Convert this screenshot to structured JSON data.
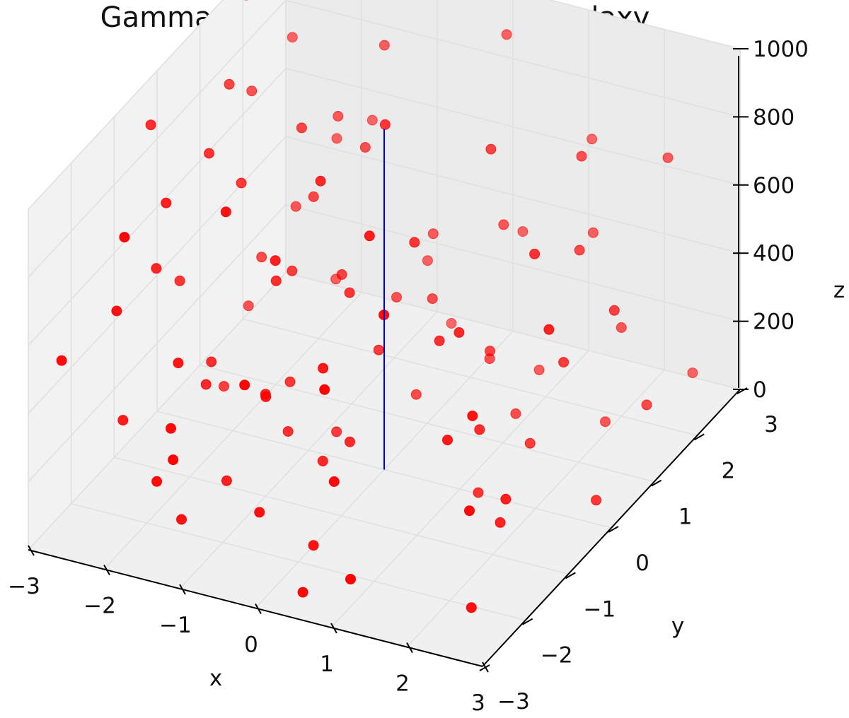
{
  "chart_data": {
    "type": "scatter",
    "title": "Gamma-rays passing through a galaxy",
    "xlabel": "x",
    "ylabel": "y",
    "zlabel": "z",
    "xlim": [
      -3,
      3
    ],
    "ylim": [
      -3,
      3
    ],
    "zlim": [
      0,
      1000
    ],
    "xticks": [
      "−3",
      "−2",
      "−1",
      "0",
      "1",
      "2",
      "3"
    ],
    "yticks": [
      "−3",
      "−2",
      "−1",
      "0",
      "1",
      "2",
      "3"
    ],
    "zticks": [
      "0",
      "200",
      "400",
      "600",
      "800",
      "1000"
    ],
    "grid": true,
    "series": [
      {
        "kind": "scatter3d",
        "color": "#ff0000",
        "points": [
          [
            -2.8,
            -0.5,
            920
          ],
          [
            -2.5,
            0.8,
            880
          ],
          [
            -2.2,
            -1.2,
            820
          ],
          [
            -2.6,
            1.5,
            760
          ],
          [
            -2.0,
            0.2,
            700
          ],
          [
            -1.8,
            2.1,
            650
          ],
          [
            -2.4,
            -2.0,
            600
          ],
          [
            -1.5,
            1.0,
            580
          ],
          [
            -1.2,
            -0.4,
            540
          ],
          [
            -2.1,
            2.6,
            500
          ],
          [
            -1.7,
            -1.8,
            460
          ],
          [
            -0.9,
            0.6,
            440
          ],
          [
            -2.7,
            0.0,
            400
          ],
          [
            -1.4,
            -2.5,
            380
          ],
          [
            -0.6,
            2.2,
            360
          ],
          [
            -2.3,
            1.2,
            330
          ],
          [
            -1.0,
            -1.0,
            300
          ],
          [
            -0.3,
            0.4,
            280
          ],
          [
            -1.9,
            -0.8,
            250
          ],
          [
            -0.8,
            1.7,
            230
          ],
          [
            -2.6,
            -1.5,
            200
          ],
          [
            -1.3,
            0.1,
            170
          ],
          [
            -0.4,
            -2.2,
            150
          ],
          [
            -2.0,
            2.4,
            120
          ],
          [
            -1.1,
            -0.3,
            90
          ],
          [
            -0.2,
            1.1,
            60
          ],
          [
            -2.4,
            0.5,
            40
          ],
          [
            -1.6,
            -1.9,
            20
          ],
          [
            -0.7,
            2.8,
            10
          ],
          [
            -2.9,
            1.9,
            970
          ],
          [
            -1.9,
            -2.7,
            940
          ],
          [
            -0.5,
            -0.6,
            900
          ],
          [
            0.2,
            2.5,
            950
          ],
          [
            0.6,
            -1.4,
            910
          ],
          [
            0.9,
            0.9,
            870
          ],
          [
            1.3,
            -2.3,
            840
          ],
          [
            1.7,
            1.6,
            800
          ],
          [
            2.1,
            -0.2,
            780
          ],
          [
            2.5,
            2.2,
            760
          ],
          [
            2.8,
            -1.1,
            720
          ],
          [
            0.4,
            0.0,
            690
          ],
          [
            0.8,
            -2.8,
            660
          ],
          [
            1.1,
            2.9,
            640
          ],
          [
            1.5,
            -0.9,
            610
          ],
          [
            1.9,
            1.2,
            590
          ],
          [
            2.3,
            -2.0,
            560
          ],
          [
            2.7,
            0.6,
            540
          ],
          [
            0.1,
            -1.6,
            520
          ],
          [
            0.5,
            1.9,
            490
          ],
          [
            0.9,
            -0.3,
            470
          ],
          [
            1.4,
            2.4,
            450
          ],
          [
            1.8,
            -1.7,
            420
          ],
          [
            2.2,
            0.3,
            400
          ],
          [
            2.6,
            -2.6,
            380
          ],
          [
            0.3,
            2.7,
            350
          ],
          [
            0.7,
            -2.4,
            330
          ],
          [
            1.0,
            0.7,
            310
          ],
          [
            1.6,
            -0.6,
            290
          ],
          [
            2.0,
            2.0,
            260
          ],
          [
            2.4,
            -1.4,
            240
          ],
          [
            2.9,
            1.0,
            220
          ],
          [
            0.0,
            -0.8,
            190
          ],
          [
            0.6,
            1.4,
            170
          ],
          [
            1.2,
            -2.9,
            140
          ],
          [
            1.7,
            0.4,
            120
          ],
          [
            2.1,
            -1.0,
            100
          ],
          [
            2.6,
            2.6,
            80
          ],
          [
            0.2,
            -2.0,
            60
          ],
          [
            0.8,
            2.2,
            40
          ],
          [
            1.3,
            -0.1,
            20
          ],
          [
            1.9,
            1.8,
            5
          ],
          [
            2.4,
            -2.2,
            30
          ],
          [
            2.8,
            0.0,
            70
          ],
          [
            -0.1,
            0.2,
            980
          ],
          [
            -0.9,
            -2.1,
            990
          ],
          [
            -1.3,
            2.3,
            860
          ],
          [
            -2.2,
            -0.2,
            830
          ],
          [
            -1.6,
            0.9,
            790
          ],
          [
            -0.7,
            -1.3,
            750
          ],
          [
            -2.8,
            2.8,
            730
          ],
          [
            -1.1,
            1.5,
            680
          ],
          [
            -0.2,
            -2.9,
            630
          ],
          [
            -2.5,
            -0.9,
            570
          ],
          [
            -1.8,
            2.9,
            530
          ],
          [
            -0.4,
            -0.1,
            510
          ],
          [
            -2.9,
            -2.4,
            480
          ],
          [
            -1.5,
            0.5,
            430
          ],
          [
            -0.6,
            -1.7,
            410
          ],
          [
            -2.3,
            2.0,
            370
          ],
          [
            -1.2,
            -2.8,
            340
          ],
          [
            -0.1,
            1.3,
            320
          ],
          [
            -2.0,
            -0.5,
            270
          ],
          [
            -0.9,
            2.6,
            210
          ],
          [
            -1.7,
            -2.3,
            180
          ],
          [
            -0.3,
            -0.9,
            130
          ],
          [
            -2.7,
            1.6,
            110
          ],
          [
            -1.4,
            -1.2,
            50
          ],
          [
            -0.8,
            0.3,
            25
          ],
          [
            0.4,
            -2.6,
            15
          ],
          [
            1.0,
            1.3,
            45
          ]
        ]
      },
      {
        "kind": "line3d",
        "color": "#0000cc",
        "points": [
          [
            0,
            0,
            0
          ],
          [
            0,
            0,
            1000
          ]
        ]
      }
    ]
  }
}
